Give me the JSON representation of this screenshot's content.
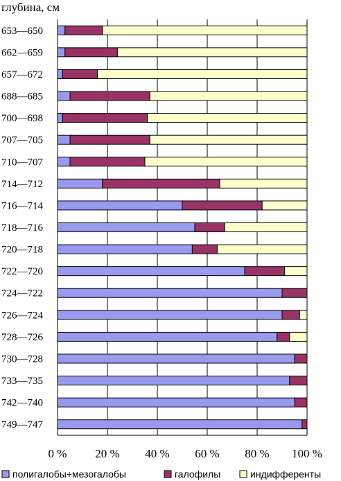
{
  "chart_data": {
    "type": "bar",
    "orientation": "horizontal",
    "stacked": "percent",
    "title": "",
    "ylabel": "глубина, см",
    "xlabel": "",
    "xlim": [
      0,
      100
    ],
    "x_ticks": [
      "0 %",
      "20 %",
      "40 %",
      "60 %",
      "80 %",
      "100 %"
    ],
    "grid": true,
    "legend_position": "bottom",
    "categories": [
      "653—650",
      "662—659",
      "657—672",
      "688—685",
      "700—698",
      "707—705",
      "710—707",
      "714—712",
      "716—714",
      "718—716",
      "720—718",
      "722—720",
      "724—722",
      "726—724",
      "728—726",
      "730—728",
      "733—735",
      "742—740",
      "749—747"
    ],
    "series": [
      {
        "name": "полигалобы+мезогалобы",
        "color": "#9999ee",
        "values": [
          3,
          3,
          2,
          5,
          2,
          5,
          5,
          18,
          50,
          55,
          54,
          75,
          90,
          90,
          88,
          95,
          93,
          95,
          98
        ]
      },
      {
        "name": "галофилы",
        "color": "#993366",
        "values": [
          15,
          21,
          14,
          32,
          34,
          32,
          30,
          47,
          32,
          12,
          10,
          16,
          10,
          7,
          5,
          5,
          7,
          5,
          2
        ]
      },
      {
        "name": "индифференты",
        "color": "#ffffcc",
        "values": [
          82,
          76,
          84,
          63,
          64,
          63,
          65,
          35,
          18,
          33,
          36,
          9,
          0,
          3,
          7,
          0,
          0,
          0,
          0
        ]
      }
    ]
  }
}
